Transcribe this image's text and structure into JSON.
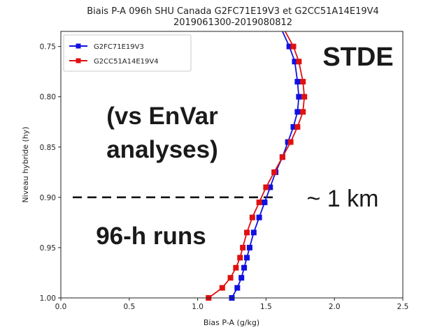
{
  "chart_data": {
    "type": "line",
    "title": "Biais P-A 096h SHU Canada G2FC71E19V3 et G2CC51A14E19V4",
    "subtitle": "2019061300-2019080812",
    "xlabel": "Bias P-A (g/kg)",
    "ylabel": "Niveau hybride (hy)",
    "xlim": [
      0.0,
      2.5
    ],
    "ylim": [
      0.735,
      1.0
    ],
    "y_inverted": true,
    "grid": false,
    "legend_position": "top-left",
    "x_ticks": [
      0.0,
      0.5,
      1.0,
      1.5,
      2.0,
      2.5
    ],
    "x_tick_labels": [
      "0.0",
      "0.5",
      "1.0",
      "1.5",
      "2.0",
      "2.5"
    ],
    "y_ticks": [
      0.75,
      0.8,
      0.85,
      0.9,
      0.95,
      1.0
    ],
    "y_tick_labels": [
      "0.75",
      "0.80",
      "0.85",
      "0.90",
      "0.95",
      "1.00"
    ],
    "series": [
      {
        "name": "G2FC71E19V3",
        "color": "#1010e0",
        "marker": "square",
        "points": [
          [
            1.62,
            0.735
          ],
          [
            1.67,
            0.75
          ],
          [
            1.71,
            0.765
          ],
          [
            1.73,
            0.785
          ],
          [
            1.74,
            0.8
          ],
          [
            1.73,
            0.815
          ],
          [
            1.7,
            0.83
          ],
          [
            1.66,
            0.845
          ],
          [
            1.62,
            0.86
          ],
          [
            1.57,
            0.875
          ],
          [
            1.53,
            0.89
          ],
          [
            1.49,
            0.905
          ],
          [
            1.45,
            0.92
          ],
          [
            1.41,
            0.935
          ],
          [
            1.38,
            0.95
          ],
          [
            1.36,
            0.96
          ],
          [
            1.34,
            0.97
          ],
          [
            1.32,
            0.98
          ],
          [
            1.29,
            0.99
          ],
          [
            1.25,
            1.0
          ]
        ]
      },
      {
        "name": "G2CC51A14E19V4",
        "color": "#e01010",
        "marker": "square",
        "points": [
          [
            1.64,
            0.735
          ],
          [
            1.7,
            0.75
          ],
          [
            1.74,
            0.765
          ],
          [
            1.77,
            0.785
          ],
          [
            1.78,
            0.8
          ],
          [
            1.77,
            0.815
          ],
          [
            1.73,
            0.83
          ],
          [
            1.68,
            0.845
          ],
          [
            1.62,
            0.86
          ],
          [
            1.56,
            0.875
          ],
          [
            1.5,
            0.89
          ],
          [
            1.45,
            0.905
          ],
          [
            1.4,
            0.92
          ],
          [
            1.36,
            0.935
          ],
          [
            1.33,
            0.95
          ],
          [
            1.31,
            0.96
          ],
          [
            1.28,
            0.97
          ],
          [
            1.24,
            0.98
          ],
          [
            1.18,
            0.99
          ],
          [
            1.08,
            1.0
          ]
        ]
      }
    ],
    "annotations": [
      {
        "name": "stde",
        "text": "STDE"
      },
      {
        "name": "vs-envar",
        "text": "(vs EnVar"
      },
      {
        "name": "analyses",
        "text": "analyses)"
      },
      {
        "name": "one-km",
        "text": "~ 1 km"
      },
      {
        "name": "runs",
        "text": "96-h runs"
      }
    ],
    "reference_line": {
      "style": "dashed",
      "color": "#111111",
      "y": 0.9
    }
  }
}
